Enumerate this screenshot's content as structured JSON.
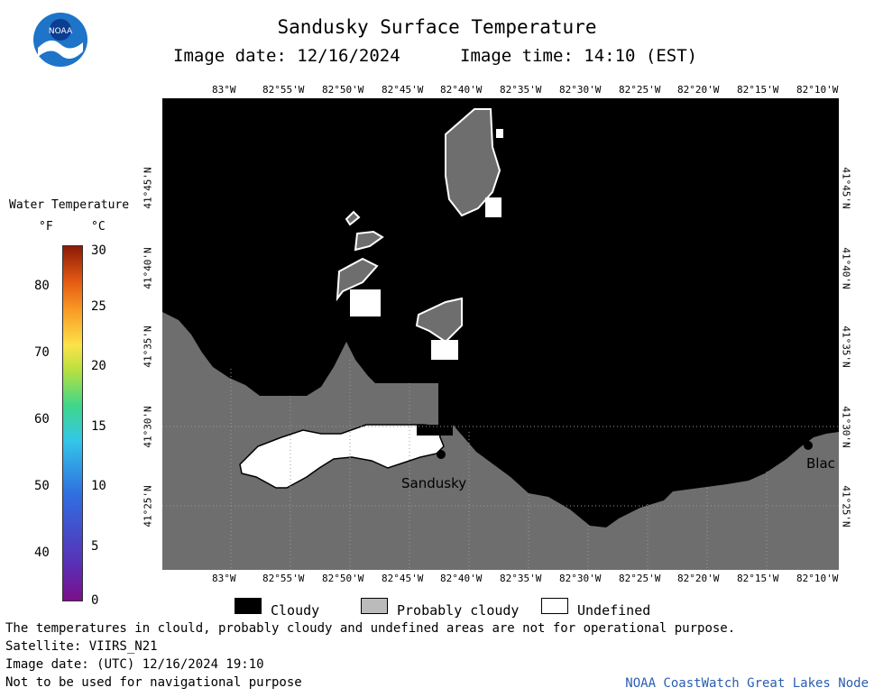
{
  "header": {
    "title": "Sandusky Surface Temperature",
    "image_date": "Image date: 12/16/2024",
    "image_time": "Image time: 14:10 (EST)"
  },
  "logo": {
    "text": "NOAA",
    "icon": "noaa-logo-icon"
  },
  "scale": {
    "title": "Water Temperature",
    "unit_f": "°F",
    "unit_c": "°C",
    "ticks_f": [
      "40",
      "50",
      "60",
      "70",
      "80"
    ],
    "ticks_c": [
      "0",
      "5",
      "10",
      "15",
      "20",
      "25",
      "30"
    ],
    "colors": [
      "#7b0f8a",
      "#2f6fe0",
      "#33c6e8",
      "#3fd68a",
      "#fbe34a",
      "#f99a25",
      "#8b1a08"
    ]
  },
  "map": {
    "lon_labels": [
      "83°W",
      "82°55'W",
      "82°50'W",
      "82°45'W",
      "82°40'W",
      "82°35'W",
      "82°30'W",
      "82°25'W",
      "82°20'W",
      "82°15'W",
      "82°10'W"
    ],
    "lat_labels": [
      "41°45'N",
      "41°40'N",
      "41°35'N",
      "41°30'N",
      "41°25'N"
    ],
    "places": {
      "sandusky": "Sandusky",
      "blac": "Blac"
    },
    "colors": {
      "water": "#000000",
      "land": "#6e6e6e",
      "undefined": "#ffffff"
    }
  },
  "legend": {
    "cloudy": "Cloudy",
    "probably_cloudy": "Probably cloudy",
    "undefined": "Undefined"
  },
  "footer": {
    "disclaimer": "The temperatures in clould, probably cloudy and undefined areas are not for operational purpose.",
    "satellite": "Satellite: VIIRS_N21",
    "utc_date": "Image date: (UTC) 12/16/2024  19:10",
    "nav_warning": "Not to be used for navigational purpose",
    "credit": "NOAA CoastWatch Great Lakes Node"
  }
}
